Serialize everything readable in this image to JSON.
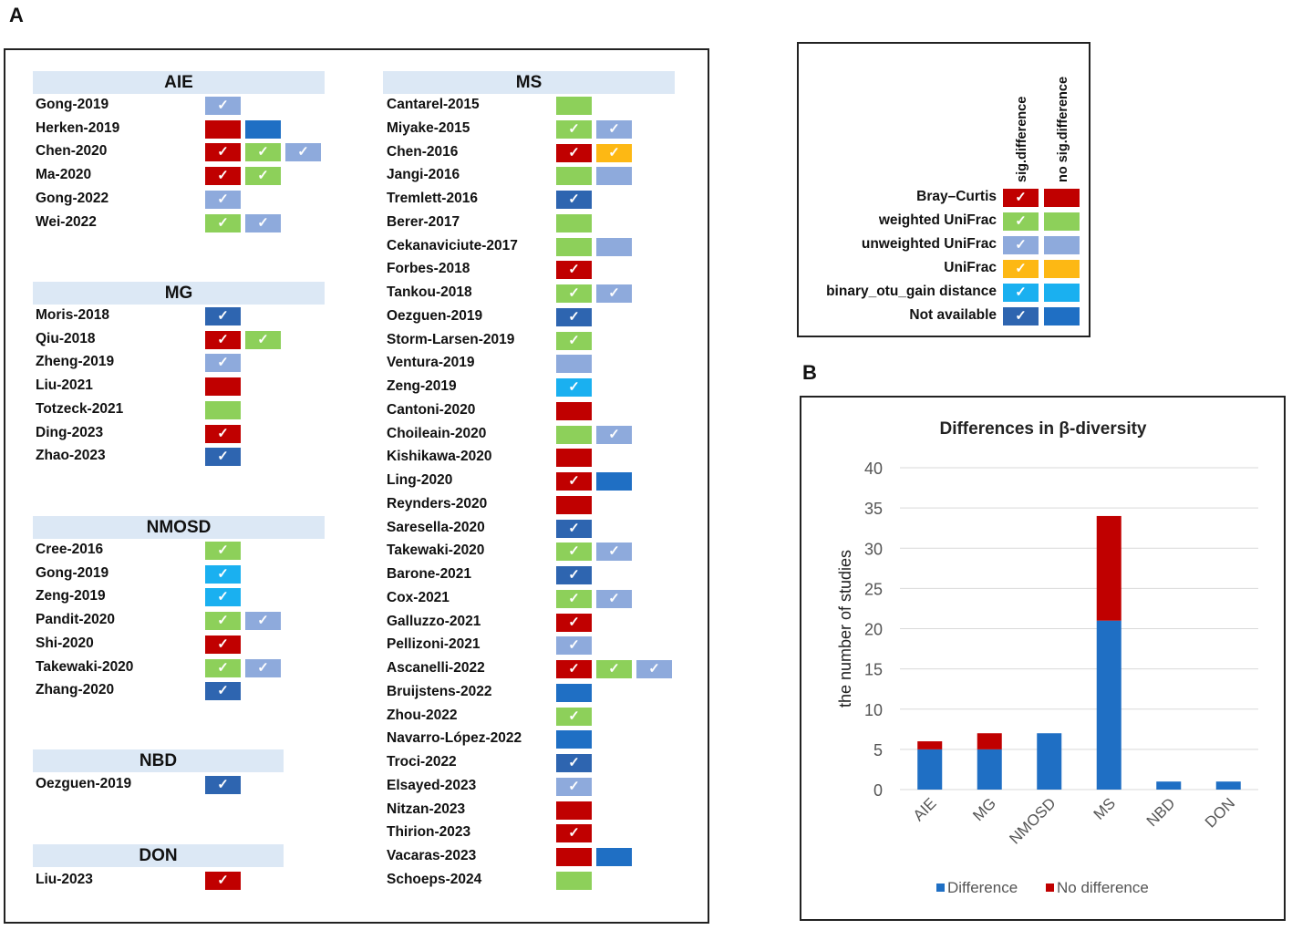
{
  "panel_a_label": "A",
  "panel_b_label": "B",
  "colors": {
    "bray_curtis": "#c00000",
    "weighted_unifrac": "#8dd05a",
    "unweighted_unifrac": "#8eaadc",
    "unifrac": "#fdb814",
    "binary_otu": "#1ab0f0",
    "not_available": "#1f6fc4",
    "not_available_checked": "#2e65b0",
    "header_bg": "#dce8f5"
  },
  "legend": {
    "col_sig": "sig.difference",
    "col_nosig": "no sig.difference",
    "rows": [
      {
        "label": "Bray–Curtis",
        "color": "bray_curtis"
      },
      {
        "label": "weighted UniFrac",
        "color": "weighted_unifrac"
      },
      {
        "label": "unweighted UniFrac",
        "color": "unweighted_unifrac"
      },
      {
        "label": "UniFrac",
        "color": "unifrac"
      },
      {
        "label": "binary_otu_gain distance",
        "color": "binary_otu"
      },
      {
        "label": "Not available",
        "color": "not_available"
      }
    ]
  },
  "groups_left": [
    {
      "name": "AIE",
      "studies": [
        {
          "name": "Gong-2019",
          "cells": [
            [
              "U",
              true
            ]
          ]
        },
        {
          "name": "Herken-2019",
          "cells": [
            [
              "B",
              false
            ],
            [
              "N",
              false
            ]
          ]
        },
        {
          "name": "Chen-2020",
          "cells": [
            [
              "B",
              true
            ],
            [
              "W",
              true
            ],
            [
              "U",
              true
            ]
          ]
        },
        {
          "name": "Ma-2020",
          "cells": [
            [
              "B",
              true
            ],
            [
              "W",
              true
            ]
          ]
        },
        {
          "name": "Gong-2022",
          "cells": [
            [
              "U",
              true
            ]
          ]
        },
        {
          "name": "Wei-2022",
          "cells": [
            [
              "W",
              true
            ],
            [
              "U",
              true
            ]
          ]
        }
      ]
    },
    {
      "name": "MG",
      "studies": [
        {
          "name": "Moris-2018",
          "cells": [
            [
              "N",
              true
            ]
          ]
        },
        {
          "name": "Qiu-2018",
          "cells": [
            [
              "B",
              true
            ],
            [
              "W",
              true
            ]
          ]
        },
        {
          "name": "Zheng-2019",
          "cells": [
            [
              "U",
              true
            ]
          ]
        },
        {
          "name": "Liu-2021",
          "cells": [
            [
              "B",
              false
            ]
          ]
        },
        {
          "name": "Totzeck-2021",
          "cells": [
            [
              "W",
              false
            ]
          ]
        },
        {
          "name": "Ding-2023",
          "cells": [
            [
              "B",
              true
            ]
          ]
        },
        {
          "name": "Zhao-2023",
          "cells": [
            [
              "N",
              true
            ]
          ]
        }
      ]
    },
    {
      "name": "NMOSD",
      "studies": [
        {
          "name": "Cree-2016",
          "cells": [
            [
              "W",
              true
            ]
          ]
        },
        {
          "name": "Gong-2019",
          "cells": [
            [
              "O",
              true
            ]
          ]
        },
        {
          "name": "Zeng-2019",
          "cells": [
            [
              "O",
              true
            ]
          ]
        },
        {
          "name": "Pandit-2020",
          "cells": [
            [
              "W",
              true
            ],
            [
              "U",
              true
            ]
          ]
        },
        {
          "name": "Shi-2020",
          "cells": [
            [
              "B",
              true
            ]
          ]
        },
        {
          "name": "Takewaki-2020",
          "cells": [
            [
              "W",
              true
            ],
            [
              "U",
              true
            ]
          ]
        },
        {
          "name": "Zhang-2020",
          "cells": [
            [
              "N",
              true
            ]
          ]
        }
      ]
    },
    {
      "name": "NBD",
      "studies": [
        {
          "name": "Oezguen-2019",
          "cells": [
            [
              "N",
              true
            ]
          ]
        }
      ]
    },
    {
      "name": "DON",
      "studies": [
        {
          "name": "Liu-2023",
          "cells": [
            [
              "B",
              true
            ]
          ]
        }
      ]
    }
  ],
  "group_ms": {
    "name": "MS",
    "studies": [
      {
        "name": "Cantarel-2015",
        "cells": [
          [
            "W",
            false
          ]
        ]
      },
      {
        "name": "Miyake-2015",
        "cells": [
          [
            "W",
            true
          ],
          [
            "U",
            true
          ]
        ]
      },
      {
        "name": "Chen-2016",
        "cells": [
          [
            "B",
            true
          ],
          [
            "Y",
            true
          ]
        ]
      },
      {
        "name": "Jangi-2016",
        "cells": [
          [
            "W",
            false
          ],
          [
            "U",
            false
          ]
        ]
      },
      {
        "name": "Tremlett-2016",
        "cells": [
          [
            "N",
            true
          ]
        ]
      },
      {
        "name": "Berer-2017",
        "cells": [
          [
            "W",
            false
          ]
        ]
      },
      {
        "name": "Cekanaviciute-2017",
        "cells": [
          [
            "W",
            false
          ],
          [
            "U",
            false
          ]
        ]
      },
      {
        "name": "Forbes-2018",
        "cells": [
          [
            "B",
            true
          ]
        ]
      },
      {
        "name": "Tankou-2018",
        "cells": [
          [
            "W",
            true
          ],
          [
            "U",
            true
          ]
        ]
      },
      {
        "name": "Oezguen-2019",
        "cells": [
          [
            "N",
            true
          ]
        ]
      },
      {
        "name": "Storm-Larsen-2019",
        "cells": [
          [
            "W",
            true
          ]
        ]
      },
      {
        "name": "Ventura-2019",
        "cells": [
          [
            "U",
            false
          ]
        ]
      },
      {
        "name": "Zeng-2019",
        "cells": [
          [
            "O",
            true
          ]
        ]
      },
      {
        "name": "Cantoni-2020",
        "cells": [
          [
            "B",
            false
          ]
        ]
      },
      {
        "name": "Choileain-2020",
        "cells": [
          [
            "W",
            false
          ],
          [
            "U",
            true
          ]
        ]
      },
      {
        "name": "Kishikawa-2020",
        "cells": [
          [
            "B",
            false
          ]
        ]
      },
      {
        "name": "Ling-2020",
        "cells": [
          [
            "B",
            true
          ],
          [
            "N",
            false
          ]
        ]
      },
      {
        "name": "Reynders-2020",
        "cells": [
          [
            "B",
            false
          ]
        ]
      },
      {
        "name": "Saresella-2020",
        "cells": [
          [
            "N",
            true
          ]
        ]
      },
      {
        "name": "Takewaki-2020",
        "cells": [
          [
            "W",
            true
          ],
          [
            "U",
            true
          ]
        ]
      },
      {
        "name": "Barone-2021",
        "cells": [
          [
            "N",
            true
          ]
        ]
      },
      {
        "name": "Cox-2021",
        "cells": [
          [
            "W",
            true
          ],
          [
            "U",
            true
          ]
        ]
      },
      {
        "name": "Galluzzo-2021",
        "cells": [
          [
            "B",
            true
          ]
        ]
      },
      {
        "name": "Pellizoni-2021",
        "cells": [
          [
            "U",
            true
          ]
        ]
      },
      {
        "name": "Ascanelli-2022",
        "cells": [
          [
            "B",
            true
          ],
          [
            "W",
            true
          ],
          [
            "U",
            true
          ]
        ]
      },
      {
        "name": "Bruijstens-2022",
        "cells": [
          [
            "N",
            false
          ]
        ]
      },
      {
        "name": "Zhou-2022",
        "cells": [
          [
            "W",
            true
          ]
        ]
      },
      {
        "name": "Navarro-López-2022",
        "cells": [
          [
            "N",
            false
          ]
        ]
      },
      {
        "name": "Troci-2022",
        "cells": [
          [
            "N",
            true
          ]
        ]
      },
      {
        "name": "Elsayed-2023",
        "cells": [
          [
            "U",
            true
          ]
        ]
      },
      {
        "name": "Nitzan-2023",
        "cells": [
          [
            "B",
            false
          ]
        ]
      },
      {
        "name": "Thirion-2023",
        "cells": [
          [
            "B",
            true
          ]
        ]
      },
      {
        "name": "Vacaras-2023",
        "cells": [
          [
            "B",
            false
          ],
          [
            "N",
            false
          ]
        ]
      },
      {
        "name": "Schoeps-2024",
        "cells": [
          [
            "W",
            false
          ]
        ]
      }
    ]
  },
  "chart_data": {
    "type": "bar",
    "stacked": true,
    "title": "Differences in β-diversity",
    "xlabel": "",
    "ylabel": "the number of studies",
    "categories": [
      "AIE",
      "MG",
      "NMOSD",
      "MS",
      "NBD",
      "DON"
    ],
    "series": [
      {
        "name": "Difference",
        "color": "#1f6fc4",
        "values": [
          5,
          5,
          7,
          21,
          1,
          1
        ]
      },
      {
        "name": "No difference",
        "color": "#c00000",
        "values": [
          1,
          2,
          0,
          13,
          0,
          0
        ]
      }
    ],
    "ylim": [
      0,
      40
    ],
    "yticks": [
      0,
      5,
      10,
      15,
      20,
      25,
      30,
      35,
      40
    ],
    "grid": true,
    "legend": "bottom"
  }
}
